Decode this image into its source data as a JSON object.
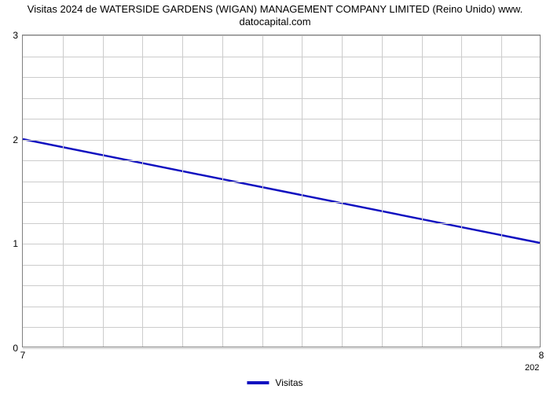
{
  "chart": {
    "type": "line",
    "title_line1": "Visitas 2024 de WATERSIDE GARDENS (WIGAN) MANAGEMENT COMPANY LIMITED (Reino Unido) www.",
    "title_line2": "datocapital.com",
    "title_fontsize": 13,
    "title_color": "#000000",
    "background_color": "#ffffff",
    "plot_border_color": "#808080",
    "grid_color": "#cccccc",
    "grid_on": true,
    "x": {
      "min": 7,
      "max": 8,
      "ticks": [
        7,
        8
      ],
      "minor_count": 13
    },
    "y": {
      "min": 0,
      "max": 3,
      "ticks": [
        0,
        1,
        2,
        3
      ],
      "minor_count_between": 4
    },
    "series": {
      "label": "Visitas",
      "color": "#1010c0",
      "line_width": 2.5,
      "points": [
        {
          "x": 7,
          "y": 2.0
        },
        {
          "x": 8,
          "y": 1.0
        }
      ]
    },
    "legend": {
      "position": "bottom-center",
      "swatch_color": "#1010c0",
      "font_color": "#000000"
    },
    "right_bottom_label": "202",
    "tick_fontsize": 12,
    "tick_color": "#000000"
  }
}
